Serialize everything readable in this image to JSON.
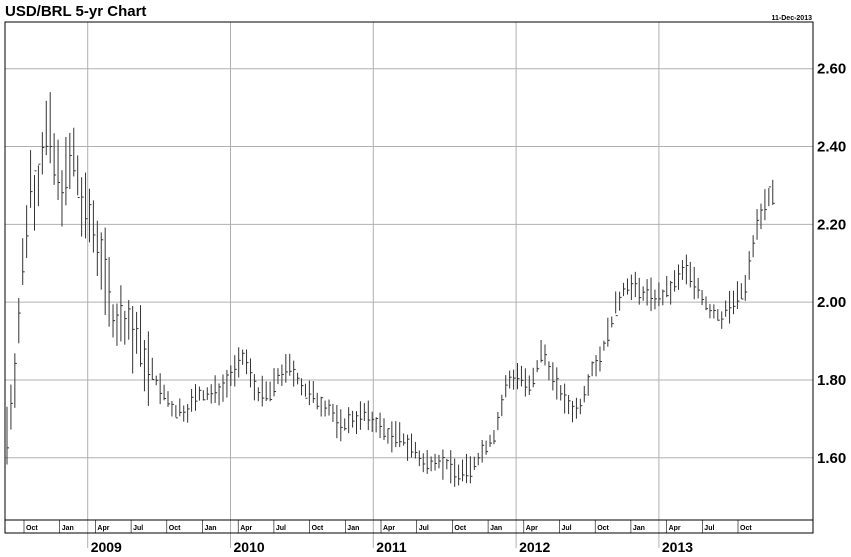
{
  "chart_data": {
    "type": "bar",
    "style": "ohlc-price-bars",
    "title": "USD/BRL 5-yr Chart",
    "date_stamp": "11-Dec-2013",
    "y_ticks": [
      "1.60",
      "1.80",
      "2.00",
      "2.20",
      "2.40",
      "2.60"
    ],
    "ylim": [
      1.44,
      2.72
    ],
    "y_axis_side": "right",
    "grid": true,
    "year_labels": [
      "2009",
      "2010",
      "2011",
      "2012",
      "2013"
    ],
    "month_labels": [
      "Oct",
      "Jan",
      "Apr",
      "Jul",
      "Oct",
      "Jan",
      "Apr",
      "Jul",
      "Oct",
      "Jan",
      "Apr",
      "Jul",
      "Oct",
      "Jan",
      "Apr",
      "Jul",
      "Oct",
      "Jan",
      "Apr",
      "Jul",
      "Oct"
    ],
    "bar_color": "#333333",
    "grid_color": "#b0b0b0",
    "price_path": {
      "x_months": [
        0,
        0.5,
        1,
        1.5,
        2,
        2.5,
        3,
        3.5,
        4,
        4.5,
        5,
        5.5,
        6,
        6.5,
        7,
        8,
        9,
        10,
        11,
        12,
        13,
        14,
        15,
        16,
        17,
        18,
        19,
        20,
        21,
        22,
        23,
        24,
        25,
        26,
        27,
        28,
        29,
        30,
        31,
        32,
        33,
        34,
        35,
        36,
        37,
        38,
        39,
        40,
        41,
        42,
        43,
        44,
        45,
        46,
        47,
        48,
        49,
        50,
        51,
        52,
        53,
        54,
        55,
        56,
        57,
        58,
        59,
        60,
        61,
        62,
        63,
        64,
        65,
        66
      ],
      "close": [
        1.66,
        1.78,
        1.95,
        2.15,
        2.32,
        2.28,
        2.4,
        2.45,
        2.35,
        2.3,
        2.32,
        2.38,
        2.3,
        2.22,
        2.22,
        2.12,
        1.95,
        1.95,
        1.9,
        1.83,
        1.77,
        1.72,
        1.72,
        1.76,
        1.76,
        1.78,
        1.82,
        1.86,
        1.77,
        1.76,
        1.82,
        1.83,
        1.77,
        1.75,
        1.73,
        1.68,
        1.7,
        1.71,
        1.69,
        1.66,
        1.65,
        1.63,
        1.58,
        1.6,
        1.58,
        1.56,
        1.57,
        1.62,
        1.66,
        1.79,
        1.82,
        1.77,
        1.88,
        1.8,
        1.74,
        1.72,
        1.82,
        1.87,
        1.97,
        2.05,
        2.03,
        2.02,
        2.01,
        2.04,
        2.09,
        2.04,
        1.98,
        1.96,
        2.0,
        2.03,
        2.2,
        2.28,
        2.25,
        2.3
      ]
    }
  }
}
